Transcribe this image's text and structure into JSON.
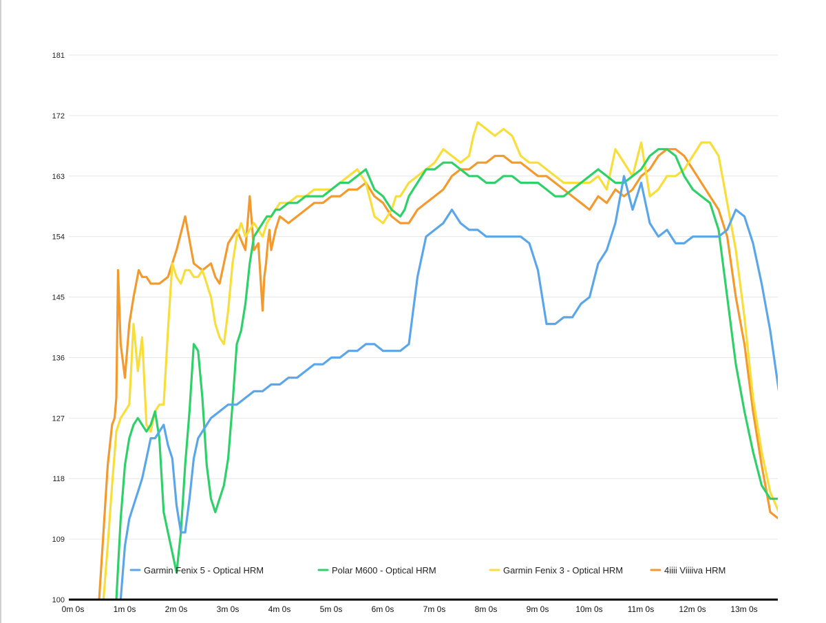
{
  "chart_data": {
    "type": "line",
    "title": "",
    "xlabel": "",
    "ylabel": "",
    "xlim": [
      0,
      832
    ],
    "ylim": [
      100,
      181
    ],
    "grid": true,
    "legend_position": "bottom-inside",
    "y_ticks": [
      "100",
      "109",
      "118",
      "127",
      "136",
      "145",
      "154",
      "163",
      "172",
      "181"
    ],
    "y_tick_values": [
      100,
      109,
      118,
      127,
      136,
      145,
      154,
      163,
      172,
      181
    ],
    "x_ticks": [
      "0m 0s",
      "1m 0s",
      "2m 0s",
      "3m 0s",
      "4m 0s",
      "5m 0s",
      "6m 0s",
      "7m 0s",
      "8m 0s",
      "9m 0s",
      "10m 0s",
      "11m 0s",
      "12m 0s",
      "13m 0s"
    ],
    "x_tick_values": [
      0,
      60,
      120,
      180,
      240,
      300,
      360,
      420,
      480,
      540,
      600,
      660,
      720,
      780
    ],
    "series": [
      {
        "name": "4iiii Viiiiva HRM",
        "color": "#f29a2e",
        "x": [
          20,
          25,
          30,
          35,
          38,
          40,
          42,
          45,
          50,
          55,
          60,
          63,
          66,
          70,
          75,
          80,
          90,
          100,
          110,
          120,
          130,
          140,
          150,
          155,
          160,
          165,
          170,
          180,
          190,
          195,
          200,
          205,
          210,
          212,
          214,
          216,
          218,
          220,
          225,
          230,
          240,
          250,
          260,
          270,
          280,
          290,
          300,
          310,
          320,
          330,
          340,
          350,
          360,
          370,
          380,
          385,
          390,
          400,
          410,
          420,
          430,
          440,
          450,
          460,
          470,
          480,
          490,
          500,
          510,
          520,
          530,
          540,
          550,
          560,
          570,
          580,
          590,
          600,
          610,
          620,
          630,
          640,
          650,
          660,
          670,
          680,
          690,
          700,
          710,
          720,
          730,
          740,
          750,
          760,
          770,
          780,
          790,
          800,
          810,
          820,
          826,
          830
        ],
        "y": [
          100,
          110,
          120,
          126,
          127,
          130,
          149,
          138,
          133,
          141,
          145,
          147,
          149,
          148,
          148,
          147,
          147,
          148,
          152,
          157,
          150,
          149,
          150,
          148,
          147,
          150,
          153,
          155,
          152,
          160,
          152,
          153,
          143,
          148,
          150,
          153,
          155,
          152,
          155,
          157,
          156,
          157,
          158,
          159,
          159,
          160,
          160,
          161,
          161,
          162,
          160,
          159,
          157,
          156,
          156,
          157,
          158,
          159,
          160,
          161,
          163,
          164,
          164,
          165,
          165,
          166,
          166,
          165,
          165,
          164,
          163,
          163,
          162,
          161,
          160,
          159,
          158,
          160,
          159,
          161,
          160,
          161,
          163,
          164,
          166,
          167,
          167,
          166,
          164,
          162,
          160,
          158,
          154,
          145,
          138,
          128,
          120,
          113,
          112,
          115,
          116,
          115
        ]
      },
      {
        "name": "Garmin Fenix 3 - Optical HRM",
        "color": "#f7de3a",
        "x": [
          25,
          30,
          35,
          40,
          45,
          50,
          55,
          60,
          65,
          70,
          75,
          80,
          85,
          90,
          95,
          100,
          105,
          110,
          115,
          120,
          125,
          130,
          135,
          140,
          145,
          150,
          155,
          160,
          165,
          170,
          175,
          180,
          185,
          190,
          195,
          200,
          205,
          210,
          215,
          220,
          225,
          230,
          240,
          250,
          260,
          270,
          280,
          290,
          300,
          310,
          320,
          330,
          340,
          350,
          360,
          365,
          370,
          375,
          380,
          390,
          400,
          410,
          420,
          430,
          440,
          450,
          455,
          460,
          470,
          480,
          490,
          500,
          510,
          520,
          530,
          540,
          550,
          560,
          570,
          580,
          590,
          600,
          610,
          620,
          630,
          640,
          650,
          660,
          670,
          680,
          690,
          700,
          710,
          720,
          730,
          740,
          750,
          760,
          770,
          780,
          790,
          800,
          810,
          820,
          826
        ],
        "y": [
          100,
          108,
          117,
          125,
          127,
          128,
          129,
          141,
          134,
          139,
          126,
          125,
          128,
          129,
          129,
          140,
          150,
          148,
          147,
          149,
          149,
          148,
          148,
          149,
          147,
          145,
          141,
          139,
          138,
          143,
          150,
          154,
          156,
          154,
          155,
          156,
          155,
          154,
          156,
          157,
          158,
          159,
          159,
          160,
          160,
          161,
          161,
          161,
          162,
          163,
          164,
          162,
          157,
          156,
          158,
          160,
          160,
          161,
          162,
          163,
          164,
          165,
          167,
          166,
          165,
          166,
          169,
          171,
          170,
          169,
          170,
          169,
          166,
          165,
          165,
          164,
          163,
          162,
          162,
          162,
          162,
          163,
          161,
          167,
          165,
          163,
          168,
          160,
          161,
          163,
          163,
          164,
          166,
          168,
          168,
          166,
          159,
          152,
          142,
          130,
          122,
          116,
          113,
          113,
          112
        ]
      },
      {
        "name": "Polar M600 - Optical HRM",
        "color": "#2fd06a",
        "x": [
          40,
          45,
          50,
          55,
          60,
          65,
          70,
          75,
          80,
          85,
          90,
          95,
          100,
          105,
          110,
          115,
          120,
          125,
          130,
          135,
          140,
          145,
          150,
          155,
          160,
          165,
          170,
          175,
          180,
          185,
          190,
          195,
          200,
          205,
          210,
          215,
          220,
          225,
          230,
          240,
          250,
          260,
          270,
          280,
          290,
          300,
          310,
          320,
          330,
          340,
          350,
          360,
          370,
          375,
          380,
          385,
          390,
          395,
          400,
          410,
          420,
          430,
          440,
          450,
          460,
          470,
          480,
          490,
          500,
          510,
          520,
          530,
          540,
          550,
          560,
          570,
          580,
          590,
          600,
          610,
          620,
          630,
          640,
          650,
          660,
          670,
          680,
          690,
          700,
          710,
          720,
          730,
          740,
          750,
          760,
          770,
          780,
          790,
          800,
          810,
          820,
          826
        ],
        "y": [
          100,
          112,
          120,
          124,
          126,
          127,
          126,
          125,
          126,
          128,
          124,
          113,
          110,
          107,
          104,
          110,
          120,
          128,
          138,
          137,
          130,
          120,
          115,
          113,
          115,
          117,
          121,
          129,
          138,
          140,
          144,
          150,
          154,
          155,
          156,
          157,
          157,
          158,
          158,
          159,
          159,
          160,
          160,
          160,
          161,
          162,
          162,
          163,
          164,
          161,
          160,
          158,
          157,
          158,
          160,
          161,
          162,
          163,
          164,
          164,
          165,
          165,
          164,
          163,
          163,
          162,
          162,
          163,
          163,
          162,
          162,
          162,
          161,
          160,
          160,
          161,
          162,
          163,
          164,
          163,
          162,
          162,
          163,
          164,
          166,
          167,
          167,
          166,
          163,
          161,
          160,
          159,
          155,
          145,
          135,
          128,
          122,
          117,
          115,
          115,
          115,
          115
        ]
      },
      {
        "name": "Garmin Fenix 5 - Optical HRM",
        "color": "#5aa6e8",
        "x": [
          45,
          50,
          55,
          60,
          65,
          70,
          75,
          80,
          85,
          90,
          95,
          100,
          105,
          110,
          115,
          120,
          125,
          130,
          135,
          140,
          150,
          160,
          170,
          180,
          190,
          200,
          210,
          220,
          230,
          240,
          250,
          260,
          270,
          280,
          290,
          300,
          310,
          320,
          330,
          340,
          350,
          360,
          370,
          380,
          390,
          400,
          410,
          420,
          430,
          440,
          450,
          460,
          470,
          480,
          490,
          500,
          510,
          520,
          530,
          540,
          550,
          560,
          570,
          580,
          590,
          600,
          610,
          620,
          630,
          640,
          650,
          660,
          670,
          680,
          690,
          700,
          710,
          720,
          730,
          740,
          750,
          760,
          770,
          780,
          790,
          800,
          810,
          820,
          826
        ],
        "y": [
          100,
          108,
          112,
          114,
          116,
          118,
          121,
          124,
          124,
          125,
          126,
          123,
          121,
          114,
          110,
          110,
          115,
          121,
          124,
          125,
          127,
          128,
          129,
          129,
          130,
          131,
          131,
          132,
          132,
          133,
          133,
          134,
          135,
          135,
          136,
          136,
          137,
          137,
          138,
          138,
          137,
          137,
          137,
          138,
          148,
          154,
          155,
          156,
          158,
          156,
          155,
          155,
          154,
          154,
          154,
          154,
          154,
          153,
          149,
          141,
          141,
          142,
          142,
          144,
          145,
          150,
          152,
          156,
          163,
          158,
          162,
          156,
          154,
          155,
          153,
          153,
          154,
          154,
          154,
          154,
          155,
          158,
          157,
          153,
          147,
          140,
          131,
          126,
          121
        ]
      }
    ],
    "legend": [
      "Garmin Fenix 5 - Optical HRM",
      "Polar M600 - Optical HRM",
      "Garmin Fenix 3 - Optical HRM",
      "4iiii Viiiiva HRM"
    ]
  }
}
